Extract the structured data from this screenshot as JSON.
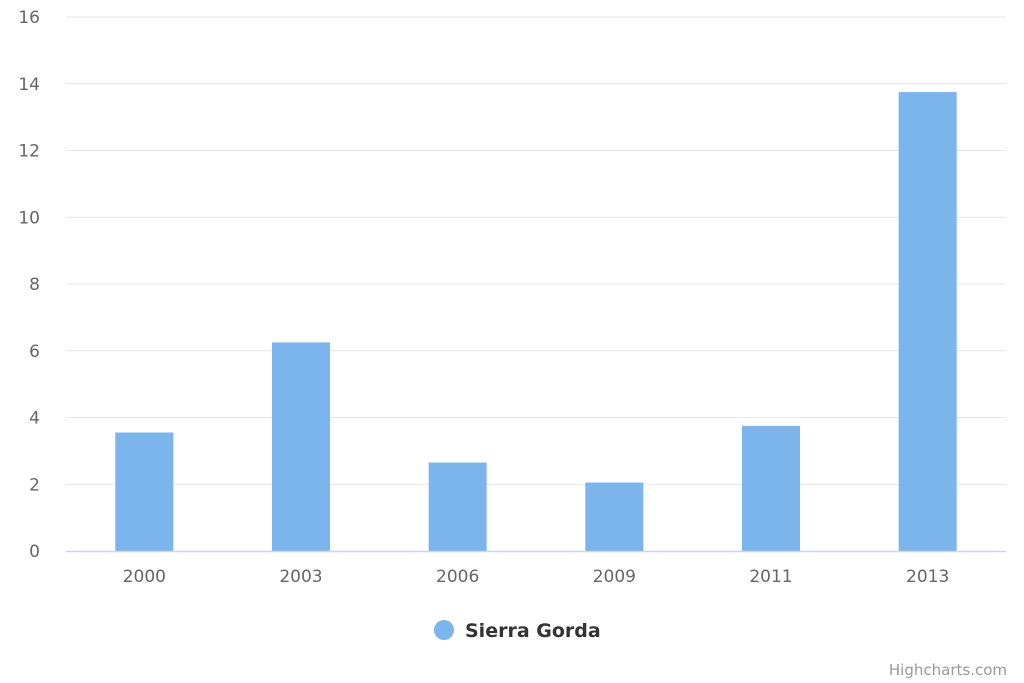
{
  "chart_data": {
    "type": "bar",
    "categories": [
      "2000",
      "2003",
      "2006",
      "2009",
      "2011",
      "2013"
    ],
    "series": [
      {
        "name": "Sierra Gorda",
        "values": [
          3.55,
          6.25,
          2.65,
          2.05,
          3.75,
          13.75
        ],
        "color": "#7cb5ec"
      }
    ],
    "yticks": [
      "0",
      "2",
      "4",
      "6",
      "8",
      "10",
      "12",
      "14",
      "16"
    ],
    "ylim": [
      0,
      16
    ],
    "grid": true,
    "legend_position": "bottom-center"
  },
  "credits": "Highcharts.com",
  "colors": {
    "grid": "#e6e6e6",
    "axis": "#ccd6eb",
    "tick_text": "#666666"
  }
}
